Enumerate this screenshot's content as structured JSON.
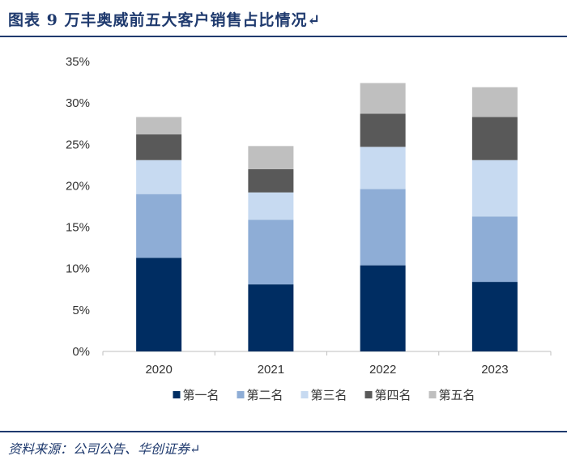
{
  "header": {
    "title": "图表 9   万丰奥威前五大客户销售占比情况↵"
  },
  "footer": {
    "source": "资料来源：公司公告、华创证券↵"
  },
  "chart_data": {
    "type": "bar",
    "stacked": true,
    "categories": [
      "2020",
      "2021",
      "2022",
      "2023"
    ],
    "y_ticks": [
      "0%",
      "5%",
      "10%",
      "15%",
      "20%",
      "25%",
      "30%",
      "35%"
    ],
    "ylim": [
      0,
      35
    ],
    "series": [
      {
        "name": "第一名",
        "color": "#002d62",
        "values": [
          11.3,
          8.1,
          10.4,
          8.4
        ]
      },
      {
        "name": "第二名",
        "color": "#8eadd6",
        "values": [
          7.7,
          7.8,
          9.2,
          7.9
        ]
      },
      {
        "name": "第三名",
        "color": "#c7daf1",
        "values": [
          4.1,
          3.3,
          5.1,
          6.8
        ]
      },
      {
        "name": "第四名",
        "color": "#595959",
        "values": [
          3.1,
          2.8,
          4.0,
          5.2
        ]
      },
      {
        "name": "第五名",
        "color": "#bfbfbf",
        "values": [
          2.1,
          2.8,
          3.7,
          3.6
        ]
      }
    ],
    "legend_position": "bottom"
  }
}
